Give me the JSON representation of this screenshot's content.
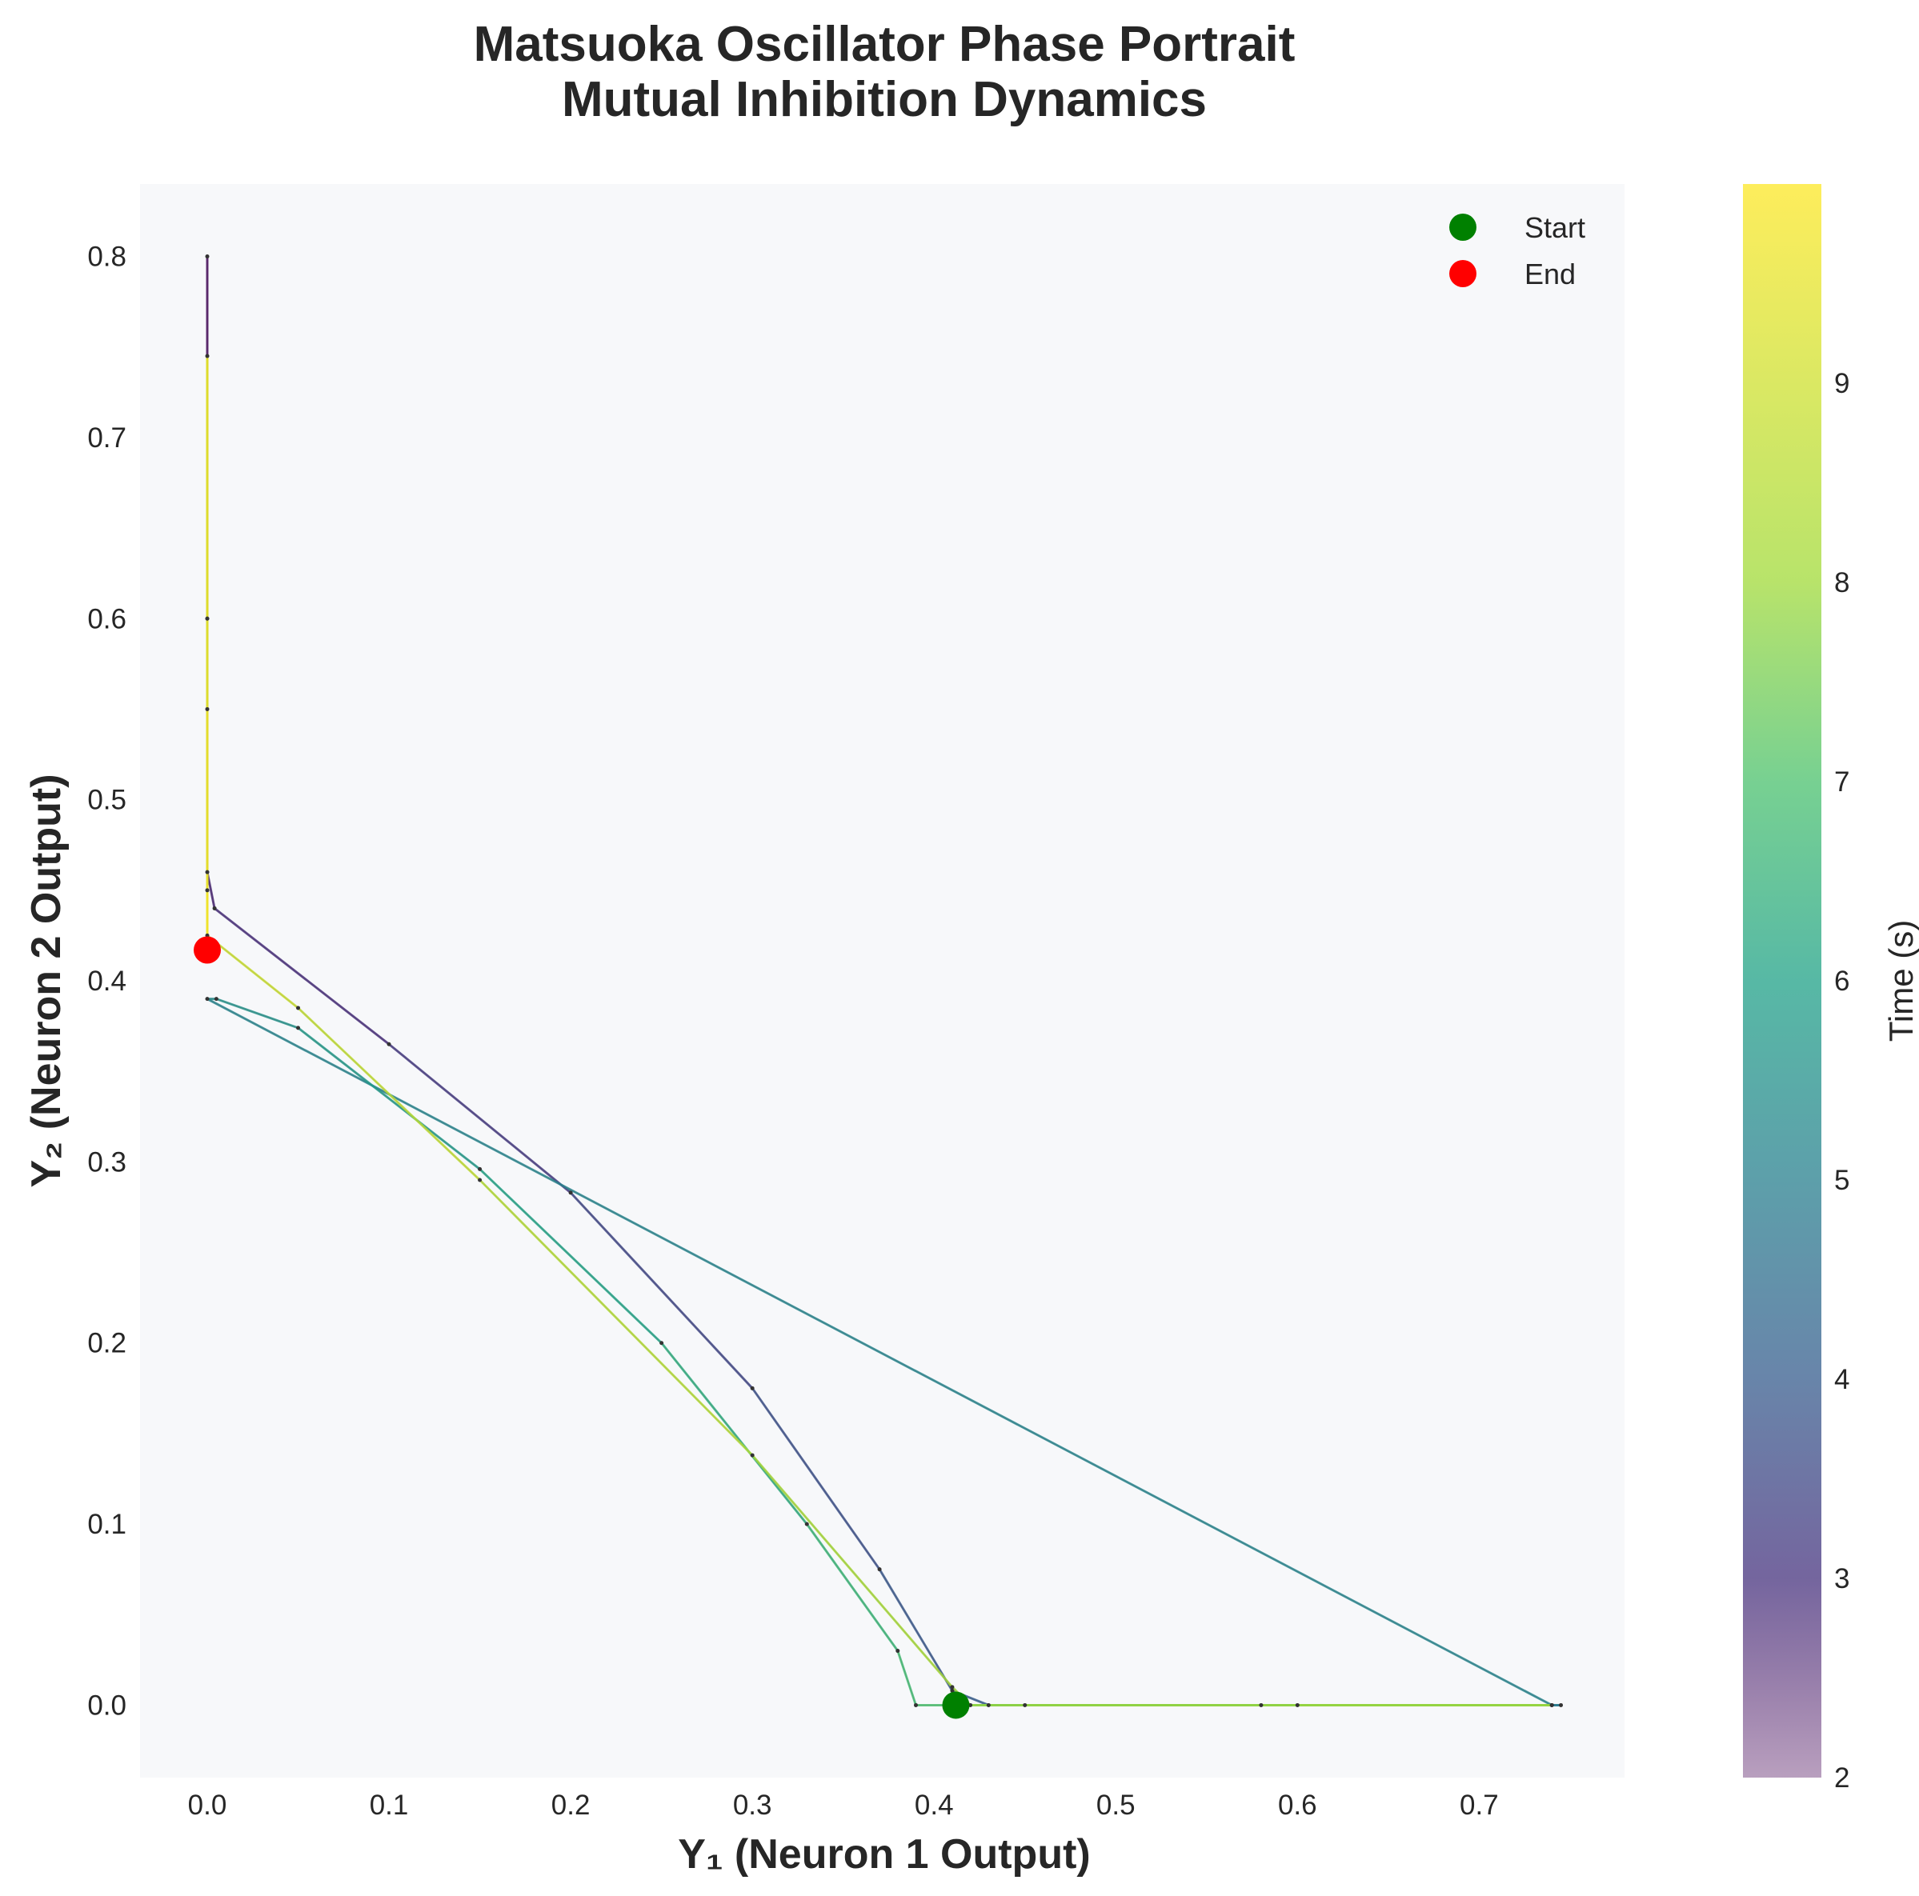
{
  "chart_data": {
    "type": "line",
    "title_line1": "Matsuoka Oscillator Phase Portrait",
    "title_line2": "Mutual Inhibition Dynamics",
    "xlabel": "Y₁ (Neuron 1 Output)",
    "ylabel": "Y₂ (Neuron 2 Output)",
    "xlim": [
      -0.037,
      0.78
    ],
    "ylim": [
      -0.04,
      0.84
    ],
    "xticks": [
      "0.0",
      "0.1",
      "0.2",
      "0.3",
      "0.4",
      "0.5",
      "0.6",
      "0.7"
    ],
    "yticks": [
      "0.0",
      "0.1",
      "0.2",
      "0.3",
      "0.4",
      "0.5",
      "0.6",
      "0.7",
      "0.8"
    ],
    "grid": false,
    "colorbar": {
      "label": "Time (s)",
      "range": [
        2,
        10
      ],
      "ticks": [
        "2",
        "3",
        "4",
        "5",
        "6",
        "7",
        "8",
        "9"
      ],
      "colormap": "viridis"
    },
    "legend": {
      "placement": "top-right",
      "entries": [
        {
          "label": "Start",
          "color": "#008000"
        },
        {
          "label": "End",
          "color": "#ff0000"
        }
      ]
    },
    "start_point": {
      "x": 0.412,
      "y": 0.0
    },
    "end_point": {
      "x": 0.0,
      "y": 0.417
    },
    "trajectory": [
      {
        "t": 2.0,
        "x": 0.0,
        "y": 0.8
      },
      {
        "t": 2.3,
        "x": 0.0,
        "y": 0.6
      },
      {
        "t": 2.6,
        "x": 0.0,
        "y": 0.46
      },
      {
        "t": 2.75,
        "x": 0.004,
        "y": 0.44
      },
      {
        "t": 3.0,
        "x": 0.1,
        "y": 0.365
      },
      {
        "t": 3.3,
        "x": 0.2,
        "y": 0.283
      },
      {
        "t": 3.6,
        "x": 0.3,
        "y": 0.175
      },
      {
        "t": 3.8,
        "x": 0.37,
        "y": 0.075
      },
      {
        "t": 3.95,
        "x": 0.41,
        "y": 0.008
      },
      {
        "t": 4.1,
        "x": 0.43,
        "y": 0.0
      },
      {
        "t": 4.4,
        "x": 0.58,
        "y": 0.0
      },
      {
        "t": 4.8,
        "x": 0.745,
        "y": 0.0
      },
      {
        "t": 5.0,
        "x": 0.74,
        "y": 0.0
      },
      {
        "t": 5.3,
        "x": 0.0,
        "y": 0.39
      },
      {
        "t": 5.45,
        "x": 0.005,
        "y": 0.39
      },
      {
        "t": 5.6,
        "x": 0.05,
        "y": 0.374
      },
      {
        "t": 5.9,
        "x": 0.15,
        "y": 0.296
      },
      {
        "t": 6.2,
        "x": 0.25,
        "y": 0.2
      },
      {
        "t": 6.5,
        "x": 0.33,
        "y": 0.1
      },
      {
        "t": 6.75,
        "x": 0.38,
        "y": 0.03
      },
      {
        "t": 6.9,
        "x": 0.39,
        "y": 0.0
      },
      {
        "t": 7.1,
        "x": 0.45,
        "y": 0.0
      },
      {
        "t": 7.5,
        "x": 0.6,
        "y": 0.0
      },
      {
        "t": 7.9,
        "x": 0.74,
        "y": 0.0
      },
      {
        "t": 8.0,
        "x": 0.42,
        "y": 0.0
      },
      {
        "t": 8.05,
        "x": 0.41,
        "y": 0.01
      },
      {
        "t": 8.3,
        "x": 0.3,
        "y": 0.138
      },
      {
        "t": 8.6,
        "x": 0.15,
        "y": 0.29
      },
      {
        "t": 8.85,
        "x": 0.05,
        "y": 0.385
      },
      {
        "t": 9.0,
        "x": 0.0,
        "y": 0.425
      },
      {
        "t": 9.2,
        "x": 0.0,
        "y": 0.6
      },
      {
        "t": 9.4,
        "x": 0.0,
        "y": 0.745
      },
      {
        "t": 9.6,
        "x": 0.0,
        "y": 0.55
      },
      {
        "t": 9.8,
        "x": 0.0,
        "y": 0.45
      },
      {
        "t": 10.0,
        "x": 0.0,
        "y": 0.417
      }
    ]
  }
}
